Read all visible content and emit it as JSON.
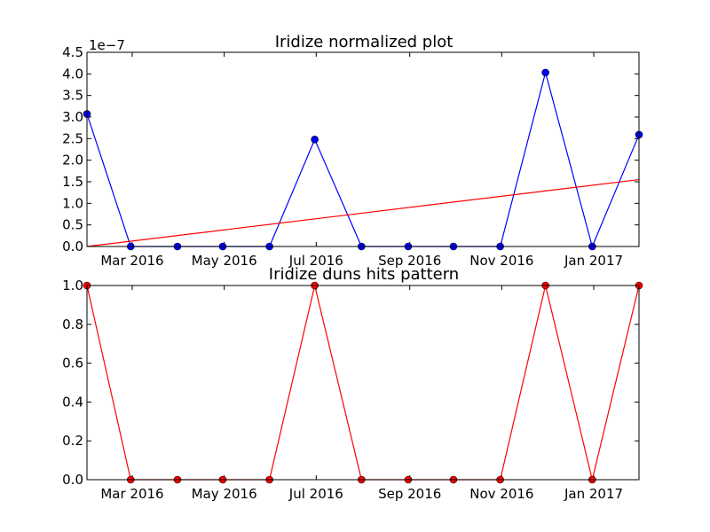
{
  "chart_data": [
    {
      "type": "line",
      "title": "Iridize normalized plot",
      "y_offset_label": "1e−7",
      "y_scale": 1e-07,
      "ylim": [
        0,
        4.5
      ],
      "yticks": [
        "0.0",
        "0.5",
        "1.0",
        "1.5",
        "2.0",
        "2.5",
        "3.0",
        "3.5",
        "4.0",
        "4.5"
      ],
      "xlim": [
        "2016-01-31",
        "2017-01-31"
      ],
      "xticks": [
        {
          "date": "2016-03-01",
          "label": "Mar 2016"
        },
        {
          "date": "2016-05-01",
          "label": "May 2016"
        },
        {
          "date": "2016-07-01",
          "label": "Jul 2016"
        },
        {
          "date": "2016-09-01",
          "label": "Sep 2016"
        },
        {
          "date": "2016-11-01",
          "label": "Nov 2016"
        },
        {
          "date": "2017-01-01",
          "label": "Jan 2017"
        }
      ],
      "series": [
        {
          "color": "#0000ff",
          "marker": "circle",
          "x": [
            "2016-01-31",
            "2016-02-29",
            "2016-03-31",
            "2016-04-30",
            "2016-05-31",
            "2016-06-30",
            "2016-07-31",
            "2016-08-31",
            "2016-09-30",
            "2016-10-31",
            "2016-11-30",
            "2016-12-31",
            "2017-01-31"
          ],
          "y": [
            3.07,
            0,
            0,
            0,
            0,
            2.48,
            0,
            0,
            0,
            0,
            4.03,
            0,
            2.59
          ]
        },
        {
          "color": "#ff0000",
          "marker": "none",
          "x": [
            "2016-01-31",
            "2017-01-31"
          ],
          "y": [
            0,
            1.55
          ]
        }
      ]
    },
    {
      "type": "line",
      "title": "Iridize duns hits pattern",
      "ylim": [
        0,
        1
      ],
      "yticks": [
        "0.0",
        "0.2",
        "0.4",
        "0.6",
        "0.8",
        "1.0"
      ],
      "xlim": [
        "2016-01-31",
        "2017-01-31"
      ],
      "xticks": [
        {
          "date": "2016-03-01",
          "label": "Mar 2016"
        },
        {
          "date": "2016-05-01",
          "label": "May 2016"
        },
        {
          "date": "2016-07-01",
          "label": "Jul 2016"
        },
        {
          "date": "2016-09-01",
          "label": "Sep 2016"
        },
        {
          "date": "2016-11-01",
          "label": "Nov 2016"
        },
        {
          "date": "2017-01-01",
          "label": "Jan 2017"
        }
      ],
      "series": [
        {
          "color": "#ff0000",
          "marker": "circle",
          "x": [
            "2016-01-31",
            "2016-02-29",
            "2016-03-31",
            "2016-04-30",
            "2016-05-31",
            "2016-06-30",
            "2016-07-31",
            "2016-08-31",
            "2016-09-30",
            "2016-10-31",
            "2016-11-30",
            "2016-12-31",
            "2017-01-31"
          ],
          "y": [
            1,
            0,
            0,
            0,
            0,
            1,
            0,
            0,
            0,
            0,
            1,
            0,
            1
          ]
        }
      ]
    }
  ]
}
